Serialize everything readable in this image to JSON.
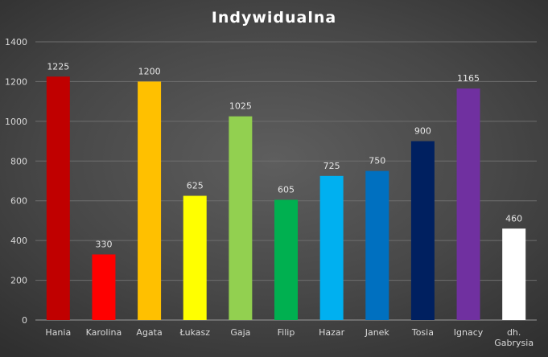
{
  "chart_data": {
    "type": "bar",
    "title": "Indywidualna",
    "xlabel": "",
    "ylabel": "",
    "ylim": [
      0,
      1400
    ],
    "yticks": [
      0,
      200,
      400,
      600,
      800,
      1000,
      1200,
      1400
    ],
    "grid": true,
    "legend": "none",
    "categories": [
      "Hania",
      "Karolina",
      "Agata",
      "Łukasz",
      "Gaja",
      "Filip",
      "Hazar",
      "Janek",
      "Tosia",
      "Ignacy",
      "dh. Gabrysia"
    ],
    "values": [
      1225,
      330,
      1200,
      625,
      1025,
      605,
      725,
      750,
      900,
      1165,
      460
    ],
    "data_labels": [
      "1225",
      "330",
      "1200",
      "625",
      "1025",
      "605",
      "725",
      "750",
      "900",
      "1165",
      "460"
    ],
    "colors": [
      "#c00000",
      "#ff0000",
      "#ffc000",
      "#ffff00",
      "#92d050",
      "#00b050",
      "#00b0f0",
      "#0070c0",
      "#002060",
      "#7030a0",
      "#ffffff"
    ]
  }
}
